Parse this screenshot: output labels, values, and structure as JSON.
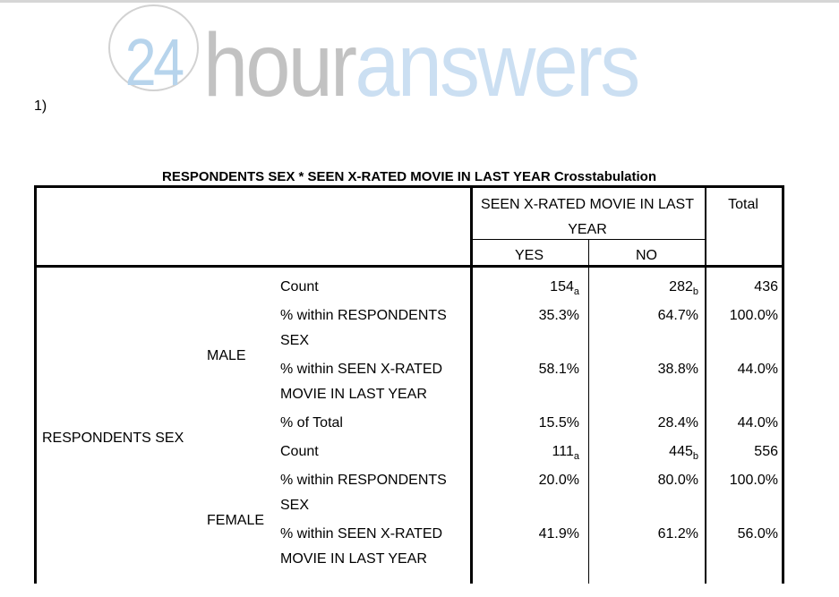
{
  "page": {
    "item_label": "1)",
    "topbar_color": "#d6d6d6"
  },
  "logo": {
    "badge": "24",
    "word1": "hour",
    "word2": "answers",
    "colors": {
      "badge_blue": "#b7d4ec",
      "word_gray": "#c2c2c2",
      "word_blue": "#cbdff2",
      "ring_gray": "#d2d2d2"
    }
  },
  "table": {
    "title": "RESPONDENTS SEX * SEEN X-RATED MOVIE IN LAST YEAR Crosstabulation",
    "header": {
      "col_group": "SEEN X-RATED MOVIE IN LAST\nYEAR",
      "col_yes": "YES",
      "col_no": "NO",
      "total": "Total"
    },
    "row_var": "RESPONDENTS SEX",
    "groups": [
      {
        "category": "MALE",
        "rows": [
          {
            "label": "Count",
            "yes": "154",
            "yes_sub": "a",
            "no": "282",
            "no_sub": "b",
            "total": "436"
          },
          {
            "label": "% within RESPONDENTS\nSEX",
            "yes": "35.3%",
            "no": "64.7%",
            "total": "100.0%"
          },
          {
            "label": "% within SEEN X-RATED\nMOVIE IN LAST YEAR",
            "yes": "58.1%",
            "no": "38.8%",
            "total": "44.0%"
          },
          {
            "label": "% of Total",
            "yes": "15.5%",
            "no": "28.4%",
            "total": "44.0%"
          }
        ]
      },
      {
        "category": "FEMALE",
        "rows": [
          {
            "label": "Count",
            "yes": "111",
            "yes_sub": "a",
            "no": "445",
            "no_sub": "b",
            "total": "556"
          },
          {
            "label": "% within RESPONDENTS\nSEX",
            "yes": "20.0%",
            "no": "80.0%",
            "total": "100.0%"
          },
          {
            "label": "% within SEEN X-RATED\nMOVIE IN LAST YEAR",
            "yes": "41.9%",
            "no": "61.2%",
            "total": "56.0%"
          }
        ]
      }
    ]
  }
}
